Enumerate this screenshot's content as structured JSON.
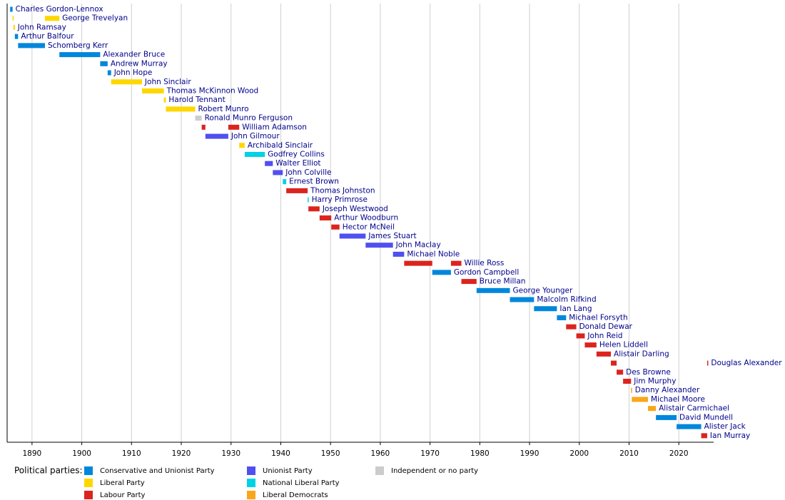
{
  "chart_data": {
    "type": "timeline",
    "xlim": [
      1885,
      2027
    ],
    "xticks": [
      1890,
      1900,
      1910,
      1920,
      1930,
      1940,
      1950,
      1960,
      1970,
      1980,
      1990,
      2000,
      2010,
      2020
    ],
    "grid": true,
    "legend_title": "Political parties:",
    "parties": [
      {
        "name": "Conservative and Unionist Party",
        "color": "#0087dc"
      },
      {
        "name": "Liberal Party",
        "color": "#fed700"
      },
      {
        "name": "Labour Party",
        "color": "#dc241f"
      },
      {
        "name": "Unionist Party",
        "color": "#5050f0"
      },
      {
        "name": "National Liberal Party",
        "color": "#00d2e6"
      },
      {
        "name": "Liberal Democrats",
        "color": "#faa61a"
      },
      {
        "name": "Independent or no party",
        "color": "#cccccc"
      }
    ],
    "rows": [
      {
        "name": "Charles Gordon-Lennox",
        "party": 0,
        "terms": [
          [
            1885.6,
            1886.1
          ]
        ]
      },
      {
        "name": "George Trevelyan",
        "party": 1,
        "terms": [
          [
            1886.1,
            1886.25
          ],
          [
            1892.6,
            1895.5
          ]
        ]
      },
      {
        "name": "John Ramsay",
        "party": 1,
        "terms": [
          [
            1886.25,
            1886.55
          ]
        ]
      },
      {
        "name": "Arthur Balfour",
        "party": 0,
        "terms": [
          [
            1886.55,
            1887.2
          ]
        ]
      },
      {
        "name": "Schomberg Kerr",
        "party": 0,
        "terms": [
          [
            1887.2,
            1892.6
          ]
        ]
      },
      {
        "name": "Alexander Bruce",
        "party": 0,
        "terms": [
          [
            1895.5,
            1903.7
          ]
        ]
      },
      {
        "name": "Andrew Murray",
        "party": 0,
        "terms": [
          [
            1903.7,
            1905.2
          ]
        ]
      },
      {
        "name": "John Hope",
        "party": 0,
        "terms": [
          [
            1905.2,
            1905.9
          ]
        ]
      },
      {
        "name": "John Sinclair",
        "party": 1,
        "terms": [
          [
            1905.9,
            1912.1
          ]
        ]
      },
      {
        "name": "Thomas McKinnon Wood",
        "party": 1,
        "terms": [
          [
            1912.1,
            1916.5
          ]
        ]
      },
      {
        "name": "Harold Tennant",
        "party": 1,
        "terms": [
          [
            1916.5,
            1916.9
          ]
        ]
      },
      {
        "name": "Robert Munro",
        "party": 1,
        "terms": [
          [
            1916.9,
            1922.8
          ]
        ]
      },
      {
        "name": "Ronald Munro Ferguson",
        "party": 6,
        "terms": [
          [
            1922.8,
            1924.1
          ]
        ]
      },
      {
        "name": "William Adamson",
        "party": 2,
        "terms": [
          [
            1924.1,
            1924.85
          ],
          [
            1929.45,
            1931.65
          ]
        ]
      },
      {
        "name": "John Gilmour",
        "party": 3,
        "terms": [
          [
            1924.85,
            1929.45
          ]
        ]
      },
      {
        "name": "Archibald Sinclair",
        "party": 1,
        "terms": [
          [
            1931.65,
            1932.75
          ]
        ]
      },
      {
        "name": "Godfrey Collins",
        "party": 4,
        "terms": [
          [
            1932.75,
            1936.8
          ]
        ]
      },
      {
        "name": "Walter Elliot",
        "party": 3,
        "terms": [
          [
            1936.8,
            1938.4
          ]
        ]
      },
      {
        "name": "John Colville",
        "party": 3,
        "terms": [
          [
            1938.4,
            1940.4
          ]
        ]
      },
      {
        "name": "Ernest Brown",
        "party": 4,
        "terms": [
          [
            1940.4,
            1941.1
          ]
        ]
      },
      {
        "name": "Thomas Johnston",
        "party": 2,
        "terms": [
          [
            1941.1,
            1945.4
          ]
        ]
      },
      {
        "name": "Harry Primrose",
        "party": 4,
        "terms": [
          [
            1945.4,
            1945.55
          ]
        ]
      },
      {
        "name": "Joseph Westwood",
        "party": 2,
        "terms": [
          [
            1945.55,
            1947.8
          ]
        ]
      },
      {
        "name": "Arthur Woodburn",
        "party": 2,
        "terms": [
          [
            1947.8,
            1950.15
          ]
        ]
      },
      {
        "name": "Hector McNeil",
        "party": 2,
        "terms": [
          [
            1950.15,
            1951.8
          ]
        ]
      },
      {
        "name": "James Stuart",
        "party": 3,
        "terms": [
          [
            1951.8,
            1957.05
          ]
        ]
      },
      {
        "name": "John Maclay",
        "party": 3,
        "terms": [
          [
            1957.05,
            1962.55
          ]
        ]
      },
      {
        "name": "Michael Noble",
        "party": 3,
        "terms": [
          [
            1962.55,
            1964.8
          ]
        ]
      },
      {
        "name": "Willie Ross",
        "party": 2,
        "terms": [
          [
            1964.8,
            1970.45
          ],
          [
            1974.2,
            1976.3
          ]
        ]
      },
      {
        "name": "Gordon Campbell",
        "party": 0,
        "terms": [
          [
            1970.45,
            1974.2
          ]
        ]
      },
      {
        "name": "Bruce Millan",
        "party": 2,
        "terms": [
          [
            1976.3,
            1979.35
          ]
        ]
      },
      {
        "name": "George Younger",
        "party": 0,
        "terms": [
          [
            1979.35,
            1986.05
          ]
        ]
      },
      {
        "name": "Malcolm Rifkind",
        "party": 0,
        "terms": [
          [
            1986.05,
            1990.9
          ]
        ]
      },
      {
        "name": "Ian Lang",
        "party": 0,
        "terms": [
          [
            1990.9,
            1995.5
          ]
        ]
      },
      {
        "name": "Michael Forsyth",
        "party": 0,
        "terms": [
          [
            1995.5,
            1997.35
          ]
        ]
      },
      {
        "name": "Donald Dewar",
        "party": 2,
        "terms": [
          [
            1997.35,
            1999.4
          ]
        ]
      },
      {
        "name": "John Reid",
        "party": 2,
        "terms": [
          [
            1999.4,
            2001.1
          ]
        ]
      },
      {
        "name": "Helen Liddell",
        "party": 2,
        "terms": [
          [
            2001.1,
            2003.45
          ]
        ]
      },
      {
        "name": "Alistair Darling",
        "party": 2,
        "terms": [
          [
            2003.45,
            2006.35
          ]
        ]
      },
      {
        "name": "Douglas Alexander",
        "party": 2,
        "terms": [
          [
            2006.35,
            2007.5
          ],
          [
            2025.7,
            2025.9
          ]
        ]
      },
      {
        "name": "Des Browne",
        "party": 2,
        "terms": [
          [
            2007.5,
            2008.8
          ]
        ]
      },
      {
        "name": "Jim Murphy",
        "party": 2,
        "terms": [
          [
            2008.8,
            2010.4
          ]
        ]
      },
      {
        "name": "Danny Alexander",
        "party": 5,
        "terms": [
          [
            2010.4,
            2010.55
          ]
        ]
      },
      {
        "name": "Michael Moore",
        "party": 5,
        "terms": [
          [
            2010.55,
            2013.8
          ]
        ]
      },
      {
        "name": "Alistair Carmichael",
        "party": 5,
        "terms": [
          [
            2013.8,
            2015.4
          ]
        ]
      },
      {
        "name": "David Mundell",
        "party": 0,
        "terms": [
          [
            2015.4,
            2019.55
          ]
        ]
      },
      {
        "name": "Alister Jack",
        "party": 0,
        "terms": [
          [
            2019.55,
            2024.5
          ]
        ]
      },
      {
        "name": "Ian Murray",
        "party": 2,
        "terms": [
          [
            2024.5,
            2025.7
          ]
        ]
      }
    ]
  }
}
